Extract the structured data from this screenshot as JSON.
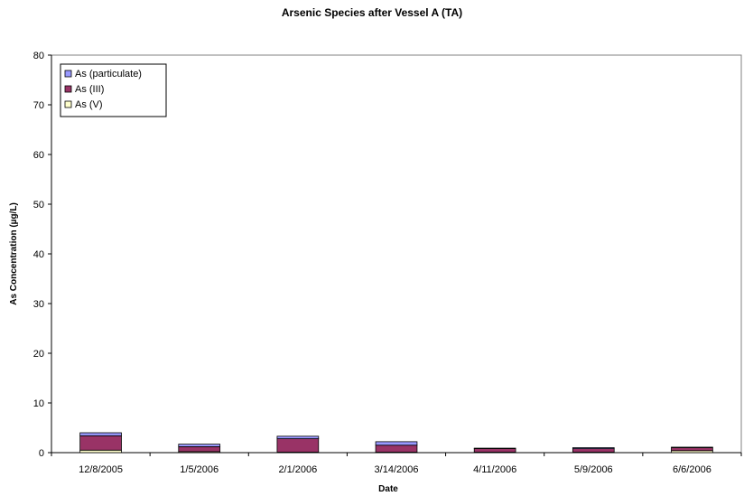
{
  "chart_data": {
    "type": "bar",
    "stacked": true,
    "title": "Arsenic Species after Vessel A (TA)",
    "xlabel": "Date",
    "ylabel": "As Concentration (µg/L)",
    "ylim": [
      0,
      80
    ],
    "yticks": [
      0,
      10,
      20,
      30,
      40,
      50,
      60,
      70,
      80
    ],
    "grid": false,
    "legend_position": "top-left",
    "categories": [
      "12/8/2005",
      "1/5/2006",
      "2/1/2006",
      "3/14/2006",
      "4/11/2006",
      "5/9/2006",
      "6/6/2006"
    ],
    "series": [
      {
        "name": "As (V)",
        "color": "#FFFFCC",
        "values": [
          0.5,
          0.2,
          0.1,
          0.1,
          0.1,
          0.1,
          0.4
        ]
      },
      {
        "name": "As (III)",
        "color": "#993366",
        "values": [
          2.9,
          1.0,
          2.7,
          1.4,
          0.7,
          0.7,
          0.6
        ]
      },
      {
        "name": "As (particulate)",
        "color": "#9999FF",
        "values": [
          0.6,
          0.5,
          0.5,
          0.7,
          0.1,
          0.2,
          0.1
        ]
      }
    ],
    "legend_order": [
      "As (particulate)",
      "As (III)",
      "As (V)"
    ]
  }
}
